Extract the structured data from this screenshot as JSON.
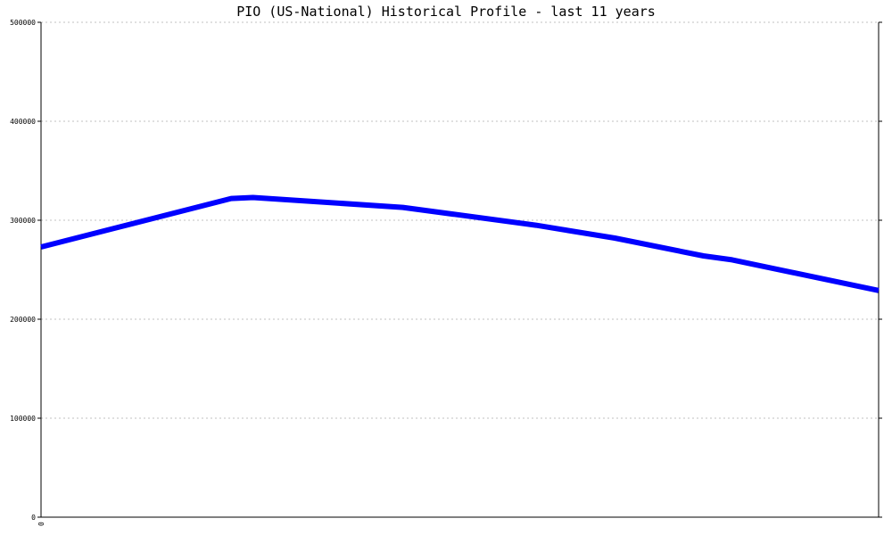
{
  "chart_data": {
    "type": "line",
    "title": "PIO (US-National) Historical Profile - last 11 years",
    "xlabel": "",
    "ylabel": "",
    "x_tick_labels": [
      "0"
    ],
    "ylim": [
      0,
      500000
    ],
    "y_ticks": [
      0,
      100000,
      200000,
      300000,
      400000,
      500000
    ],
    "y_tick_labels": [
      "0",
      "100000",
      "200000",
      "300000",
      "400000",
      "500000"
    ],
    "grid": true,
    "legend": "none",
    "series": [
      {
        "x": [
          0,
          2.27,
          2.53,
          4.32,
          5.91,
          6.85,
          7.91,
          8.25,
          10
        ],
        "values": [
          273000,
          322000,
          323000,
          313000,
          295000,
          282000,
          264000,
          260000,
          229000
        ],
        "color": "#0000ff"
      }
    ],
    "xlim": [
      0,
      10
    ]
  },
  "colors": {
    "line": "#0000ff",
    "axis": "#000000",
    "grid": "#c0c0c0",
    "background": "#ffffff"
  }
}
